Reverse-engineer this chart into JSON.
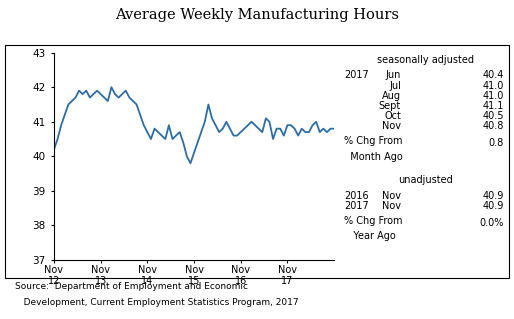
{
  "title": "Average Weekly Manufacturing Hours",
  "line_color": "#2E6DA4",
  "line_width": 1.3,
  "ylim": [
    37,
    43
  ],
  "yticks": [
    37,
    38,
    39,
    40,
    41,
    42,
    43
  ],
  "x_tick_labels": [
    "Nov\n12",
    "Nov\n13",
    "Nov\n14",
    "Nov\n15",
    "Nov\n16",
    "Nov\n17"
  ],
  "tick_positions": [
    0,
    13,
    26,
    39,
    52,
    65
  ],
  "source_line1": "Source:  Department of Employment and Economic",
  "source_line2": "   Development, Current Employment Statistics Program, 2017",
  "seasonally_adjusted_label": "seasonally adjusted",
  "sa_year": "2017",
  "sa_months": [
    "Jun",
    "Jul",
    "Aug",
    "Sept",
    "Oct",
    "Nov"
  ],
  "sa_values": [
    "40.4",
    "41.0",
    "41.0",
    "41.1",
    "40.5",
    "40.8"
  ],
  "sa_pct_chg_label1": "% Chg From",
  "sa_pct_chg_label2": "  Month Ago",
  "sa_pct_chg_value": "0.8",
  "unadjusted_label": "unadjusted",
  "ua_rows": [
    {
      "year": "2016",
      "month": "Nov",
      "value": "40.9"
    },
    {
      "year": "2017",
      "month": "Nov",
      "value": "40.9"
    }
  ],
  "ua_pct_chg_label1": "% Chg From",
  "ua_pct_chg_label2": "   Year Ago",
  "ua_pct_chg_value": "0.0%",
  "y_values": [
    40.2,
    40.5,
    40.9,
    41.2,
    41.5,
    41.6,
    41.7,
    41.9,
    41.8,
    41.9,
    41.7,
    41.8,
    41.9,
    41.8,
    41.7,
    41.6,
    42.0,
    41.8,
    41.7,
    41.8,
    41.9,
    41.7,
    41.6,
    41.5,
    41.2,
    40.9,
    40.7,
    40.5,
    40.8,
    40.7,
    40.6,
    40.5,
    40.9,
    40.5,
    40.6,
    40.7,
    40.4,
    40.0,
    39.8,
    40.1,
    40.4,
    40.7,
    41.0,
    41.5,
    41.1,
    40.9,
    40.7,
    40.8,
    41.0,
    40.8,
    40.6,
    40.6,
    40.7,
    40.8,
    40.9,
    41.0,
    40.9,
    40.8,
    40.7,
    41.1,
    41.0,
    40.5,
    40.8,
    40.8,
    40.6,
    40.9,
    40.9,
    40.8,
    40.6,
    40.8,
    40.7,
    40.7,
    40.9,
    41.0,
    40.7,
    40.8,
    40.7,
    40.8,
    40.8
  ]
}
